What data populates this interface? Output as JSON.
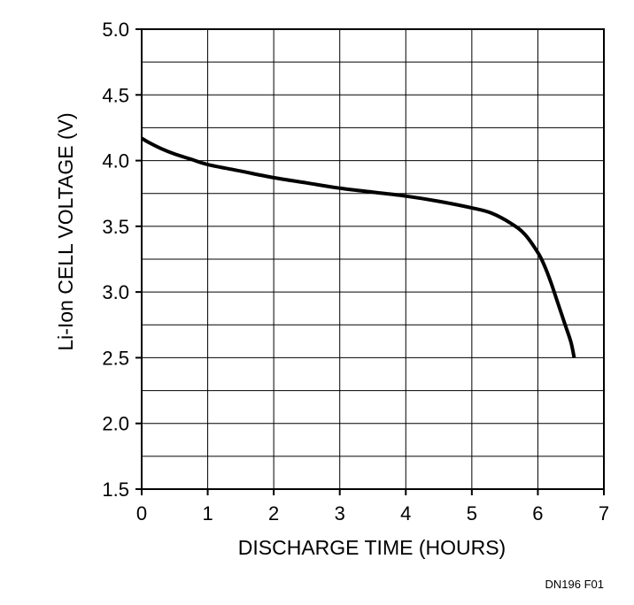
{
  "chart_data": {
    "type": "line",
    "xlabel": "DISCHARGE TIME (HOURS)",
    "ylabel": "Li-Ion CELL VOLTAGE (V)",
    "xlim": [
      0,
      7
    ],
    "ylim": [
      1.5,
      5.0
    ],
    "x_ticks": [
      0,
      1,
      2,
      3,
      4,
      5,
      6,
      7
    ],
    "x_tick_labels": [
      "0",
      "1",
      "2",
      "3",
      "4",
      "5",
      "6",
      "7"
    ],
    "y_ticks": [
      1.5,
      2.0,
      2.5,
      3.0,
      3.5,
      4.0,
      4.5,
      5.0
    ],
    "y_tick_labels": [
      "1.5",
      "2.0",
      "2.5",
      "3.0",
      "3.5",
      "4.0",
      "4.5",
      "5.0"
    ],
    "x_minor_grid_step": 1,
    "y_minor_grid_step": 0.25,
    "grid": true,
    "line_color": "#000000",
    "series": [
      {
        "x": [
          0.0,
          0.1,
          0.3,
          0.5,
          0.75,
          1.0,
          1.5,
          2.0,
          2.5,
          3.0,
          3.5,
          4.0,
          4.5,
          5.0,
          5.3,
          5.6,
          5.8,
          6.0,
          6.1,
          6.2,
          6.3,
          6.4,
          6.5,
          6.55
        ],
        "y": [
          4.17,
          4.14,
          4.09,
          4.05,
          4.01,
          3.97,
          3.92,
          3.87,
          3.83,
          3.79,
          3.76,
          3.73,
          3.69,
          3.64,
          3.6,
          3.52,
          3.44,
          3.3,
          3.2,
          3.07,
          2.92,
          2.77,
          2.62,
          2.5
        ]
      }
    ]
  },
  "figure_id": "DN196 F01"
}
